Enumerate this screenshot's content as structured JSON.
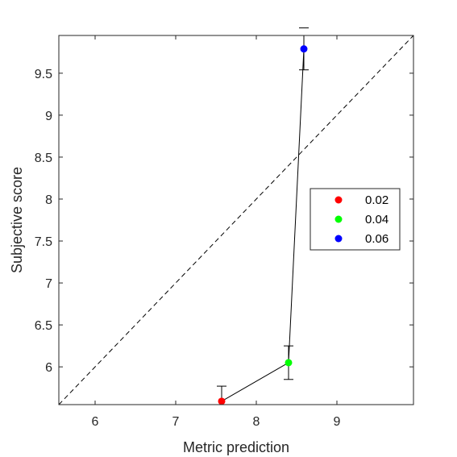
{
  "chart_data": {
    "type": "scatter",
    "xlabel": "Metric prediction",
    "ylabel": "Subjective score",
    "xlim": [
      5.55,
      9.95
    ],
    "ylim": [
      5.55,
      9.95
    ],
    "x_ticks": [
      6,
      7,
      8,
      9
    ],
    "y_ticks": [
      6,
      6.5,
      7,
      7.5,
      8,
      8.5,
      9,
      9.5
    ],
    "grid": false,
    "box": true,
    "reference_line": {
      "style": "dashed",
      "from": [
        5.55,
        5.55
      ],
      "to": [
        9.95,
        9.95
      ]
    },
    "connecting_line": true,
    "points": [
      {
        "name": "0.02",
        "x": 7.57,
        "y": 5.59,
        "err_low": 0.0,
        "err_high": 0.18,
        "color": "#ff0000"
      },
      {
        "name": "0.04",
        "x": 8.4,
        "y": 6.05,
        "err_low": 0.2,
        "err_high": 0.2,
        "color": "#00ff00"
      },
      {
        "name": "0.06",
        "x": 8.59,
        "y": 9.79,
        "err_low": 0.25,
        "err_high": 0.25,
        "color": "#0000ff"
      }
    ],
    "legend": {
      "placement": "right",
      "entries": [
        "0.02",
        "0.04",
        "0.06"
      ]
    }
  }
}
